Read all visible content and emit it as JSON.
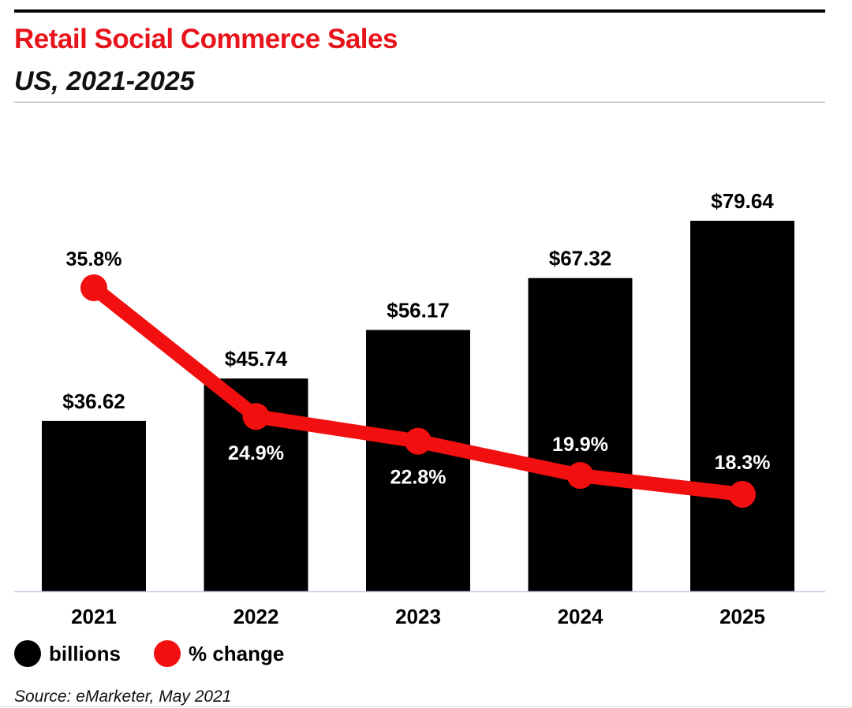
{
  "title": "Retail Social Commerce Sales",
  "subtitle": "US, 2021-2025",
  "source": "Source: eMarketer, May 2021",
  "colors": {
    "bar": "#000000",
    "line": "#f20f0f",
    "title": "#e8141b"
  },
  "legend": [
    {
      "label": "billions",
      "color": "#000000"
    },
    {
      "label": "% change",
      "color": "#f20f0f"
    }
  ],
  "chart_data": {
    "type": "bar",
    "title": "Retail Social Commerce Sales",
    "subtitle": "US, 2021-2025",
    "categories": [
      "2021",
      "2022",
      "2023",
      "2024",
      "2025"
    ],
    "series": [
      {
        "name": "billions",
        "type": "bar",
        "values": [
          36.62,
          45.74,
          56.17,
          67.32,
          79.64
        ],
        "labels": [
          "$36.62",
          "$45.74",
          "$56.17",
          "$67.32",
          "$79.64"
        ]
      },
      {
        "name": "% change",
        "type": "line",
        "values": [
          35.8,
          24.9,
          22.8,
          19.9,
          18.3
        ],
        "labels": [
          "35.8%",
          "24.9%",
          "22.8%",
          "19.9%",
          "18.3%"
        ]
      }
    ],
    "xlabel": "",
    "ylabel": "",
    "ylim_bars": [
      0,
      85
    ],
    "ylim_line": [
      0,
      40
    ],
    "grid": false,
    "legend_position": "bottom-left"
  }
}
